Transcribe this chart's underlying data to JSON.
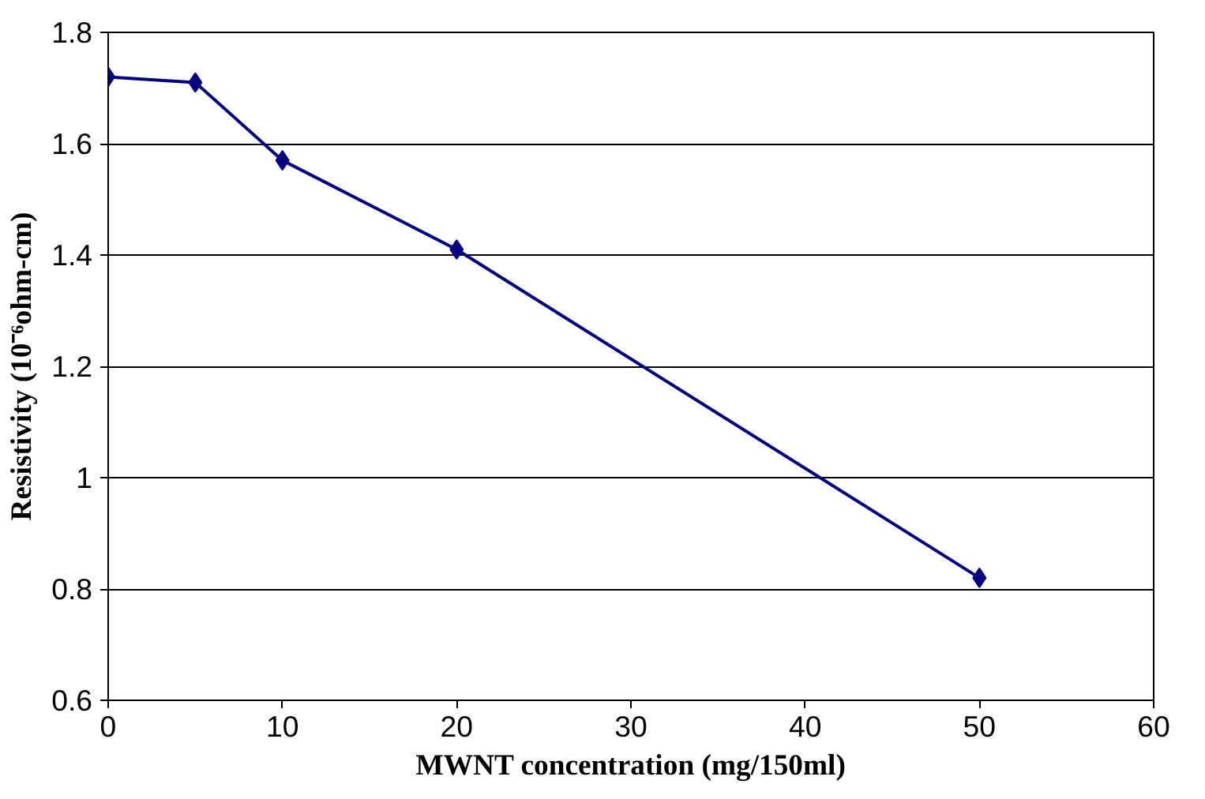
{
  "chart_data": {
    "type": "line",
    "xlabel": "MWNT concentration (mg/150ml)",
    "ylabel": "Resistivity (10⁻⁶ohm-cm)",
    "x": [
      0,
      5,
      10,
      20,
      50
    ],
    "series": [
      {
        "color": "#000080",
        "values": [
          1.72,
          1.71,
          1.57,
          1.41,
          0.82
        ]
      }
    ],
    "xlim": [
      0,
      60
    ],
    "xticks": [
      0,
      10,
      20,
      30,
      40,
      50,
      60
    ],
    "ylim": [
      0.6,
      1.8
    ],
    "yticks": [
      0.6,
      0.8,
      1,
      1.2,
      1.4,
      1.6,
      1.8
    ],
    "grid": "y",
    "marker": "diamond",
    "line_style": "solid"
  }
}
